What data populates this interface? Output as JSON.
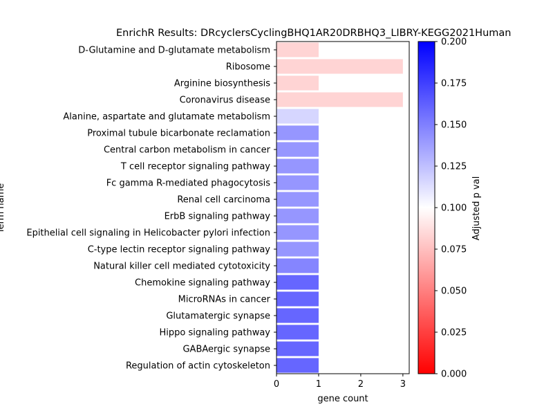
{
  "chart_data": {
    "type": "bar",
    "orientation": "horizontal",
    "title": "EnrichR Results: DRcyclersCyclingBHQ1AR20DRBHQ3_LIBRY-KEGG2021Human",
    "xlabel": "gene count",
    "ylabel": "Term name",
    "xlim": [
      0,
      3.15
    ],
    "xticks": [
      "0",
      "1",
      "2",
      "3"
    ],
    "grid": false,
    "categories": [
      "D-Glutamine and D-glutamate metabolism",
      "Ribosome",
      "Arginine biosynthesis",
      "Coronavirus disease",
      "Alanine, aspartate and glutamate metabolism",
      "Proximal tubule bicarbonate reclamation",
      "Central carbon metabolism in cancer",
      "T cell receptor signaling pathway",
      "Fc gamma R-mediated phagocytosis",
      "Renal cell carcinoma",
      "ErbB signaling pathway",
      "Epithelial cell signaling in Helicobacter pylori infection",
      "C-type lectin receptor signaling pathway",
      "Natural killer cell mediated cytotoxicity",
      "Chemokine signaling pathway",
      "MicroRNAs in cancer",
      "Glutamatergic synapse",
      "Hippo signaling pathway",
      "GABAergic synapse",
      "Regulation of actin cytoskeleton"
    ],
    "values": [
      1,
      3,
      1,
      3,
      1,
      1,
      1,
      1,
      1,
      1,
      1,
      1,
      1,
      1,
      1,
      1,
      1,
      1,
      1,
      1
    ],
    "adjusted_p_values": [
      0.083,
      0.083,
      0.083,
      0.083,
      0.116,
      0.141,
      0.141,
      0.141,
      0.141,
      0.141,
      0.141,
      0.141,
      0.141,
      0.148,
      0.16,
      0.16,
      0.16,
      0.16,
      0.16,
      0.16
    ],
    "colorbar": {
      "label": "Adjusted p val",
      "range": [
        0.0,
        0.2
      ],
      "ticks": [
        "0.000",
        "0.025",
        "0.050",
        "0.075",
        "0.100",
        "0.125",
        "0.150",
        "0.175",
        "0.200"
      ],
      "colormap": "bwr_r",
      "colors": {
        "low": "#ff0000",
        "mid": "#ffffff",
        "high": "#0000ff"
      }
    }
  }
}
